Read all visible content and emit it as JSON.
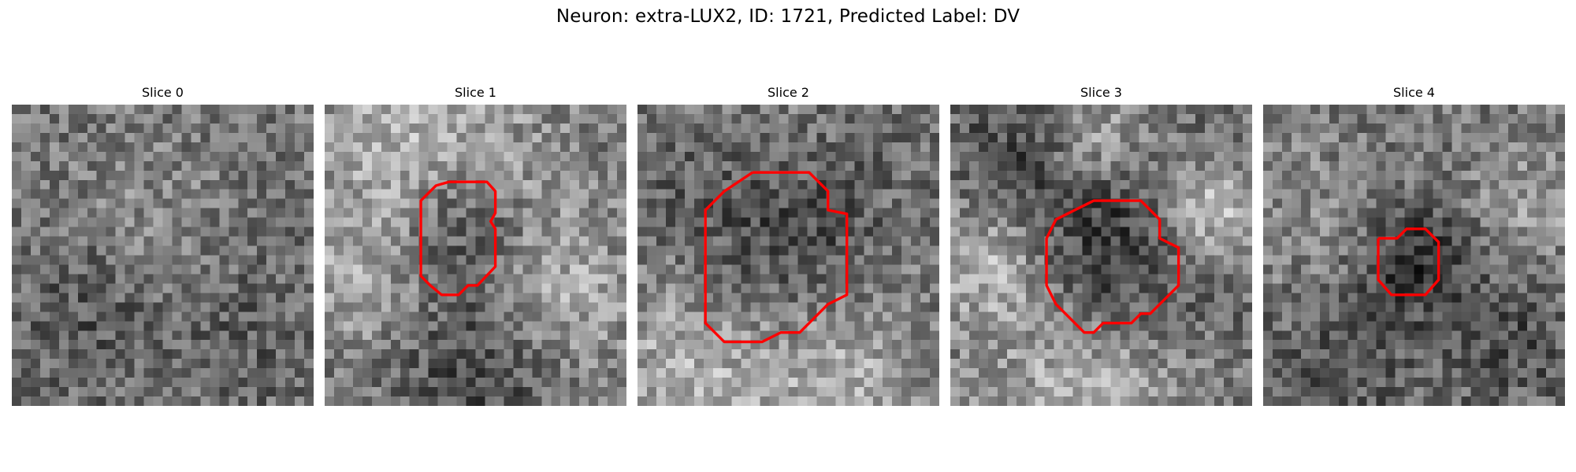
{
  "figure": {
    "title": "Neuron: extra-LUX2, ID: 1721, Predicted Label: DV",
    "colormap": "gray",
    "contour_color": "#ff0000",
    "grid_size": 32
  },
  "slices": [
    {
      "title": "Slice 0",
      "seed": 11,
      "blobs": [
        [
          14,
          10,
          6,
          0.08
        ],
        [
          7,
          22,
          5,
          -0.12
        ],
        [
          24,
          24,
          6,
          -0.08
        ]
      ],
      "contour": []
    },
    {
      "title": "Slice 1",
      "seed": 23,
      "blobs": [
        [
          10,
          4,
          8,
          0.3
        ],
        [
          22,
          8,
          5,
          0.1
        ],
        [
          4,
          18,
          6,
          0.2
        ],
        [
          24,
          20,
          6,
          0.25
        ],
        [
          14,
          12,
          6,
          -0.28
        ],
        [
          16,
          27,
          6,
          -0.22
        ]
      ],
      "contour": [
        [
          13.2,
          8.2
        ],
        [
          17.2,
          8.2
        ],
        [
          18.1,
          9.2
        ],
        [
          18.1,
          11.5
        ],
        [
          17.6,
          12.4
        ],
        [
          18.1,
          13.2
        ],
        [
          18.1,
          17.2
        ],
        [
          16.2,
          19.2
        ],
        [
          15.2,
          19.2
        ],
        [
          14.2,
          20.2
        ],
        [
          12.4,
          20.2
        ],
        [
          11.2,
          19.2
        ],
        [
          10.2,
          18.2
        ],
        [
          10.2,
          10.2
        ],
        [
          11.8,
          8.6
        ],
        [
          13.2,
          8.2
        ]
      ]
    },
    {
      "title": "Slice 2",
      "seed": 37,
      "blobs": [
        [
          14,
          14,
          9,
          -0.22
        ],
        [
          6,
          26,
          8,
          0.28
        ],
        [
          22,
          28,
          6,
          0.25
        ],
        [
          14,
          2,
          5,
          0.1
        ],
        [
          28,
          14,
          5,
          0.05
        ]
      ],
      "contour": [
        [
          12.2,
          7.2
        ],
        [
          18.2,
          7.2
        ],
        [
          20.2,
          9.2
        ],
        [
          20.2,
          11.2
        ],
        [
          22.2,
          11.6
        ],
        [
          22.2,
          20.2
        ],
        [
          20.2,
          21.2
        ],
        [
          19.2,
          22.2
        ],
        [
          18.2,
          23.2
        ],
        [
          17.2,
          24.2
        ],
        [
          15.2,
          24.2
        ],
        [
          13.2,
          25.2
        ],
        [
          9.2,
          25.2
        ],
        [
          7.2,
          23.2
        ],
        [
          7.2,
          11.2
        ],
        [
          9.2,
          9.2
        ],
        [
          12.2,
          7.2
        ]
      ]
    },
    {
      "title": "Slice 3",
      "seed": 51,
      "blobs": [
        [
          16,
          16,
          8,
          -0.3
        ],
        [
          15,
          3,
          4,
          0.25
        ],
        [
          27,
          11,
          4,
          0.35
        ],
        [
          4,
          16,
          5,
          0.3
        ],
        [
          14,
          29,
          8,
          0.3
        ],
        [
          6,
          5,
          5,
          -0.15
        ]
      ],
      "contour": [
        [
          13.2,
          11.2
        ],
        [
          15.2,
          10.2
        ],
        [
          20.2,
          10.2
        ],
        [
          21.2,
          11.2
        ],
        [
          22.2,
          12.2
        ],
        [
          22.2,
          14.2
        ],
        [
          24.2,
          15.2
        ],
        [
          24.2,
          19.2
        ],
        [
          23.2,
          20.2
        ],
        [
          22.2,
          21.2
        ],
        [
          21.2,
          22.2
        ],
        [
          20.2,
          22.2
        ],
        [
          19.2,
          23.2
        ],
        [
          16.2,
          23.2
        ],
        [
          15.2,
          24.2
        ],
        [
          14.2,
          24.2
        ],
        [
          13.2,
          23.2
        ],
        [
          11.2,
          21.2
        ],
        [
          10.2,
          19.2
        ],
        [
          10.2,
          14.2
        ],
        [
          11.2,
          12.2
        ],
        [
          13.2,
          11.2
        ]
      ]
    },
    {
      "title": "Slice 4",
      "seed": 67,
      "blobs": [
        [
          16,
          16,
          4,
          -0.28
        ],
        [
          8,
          26,
          6,
          -0.12
        ],
        [
          26,
          24,
          5,
          -0.15
        ],
        [
          4,
          12,
          6,
          0.1
        ],
        [
          28,
          10,
          5,
          0.15
        ]
      ],
      "contour": [
        [
          12.2,
          14.2
        ],
        [
          14.2,
          14.2
        ],
        [
          15.2,
          13.2
        ],
        [
          17.2,
          13.2
        ],
        [
          18.6,
          14.6
        ],
        [
          18.6,
          18.6
        ],
        [
          17.2,
          20.2
        ],
        [
          13.6,
          20.2
        ],
        [
          12.2,
          18.6
        ],
        [
          12.2,
          14.2
        ]
      ]
    }
  ]
}
